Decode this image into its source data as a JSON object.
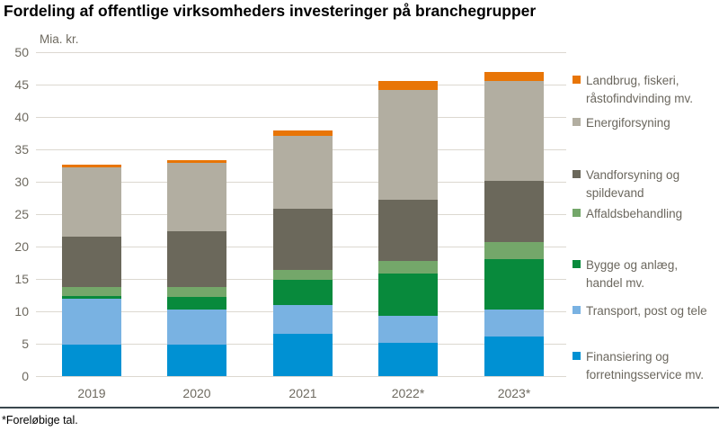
{
  "header": {
    "title": "Fordeling af offentlige virksomheders investeringer på branchegrupper"
  },
  "chart": {
    "unit_label": "Mia. kr.",
    "footnote": "*Foreløbige tal."
  },
  "chart_data": {
    "type": "bar",
    "stacked": true,
    "title": "Fordeling af offentlige virksomheders investeringer på branchegrupper",
    "ylabel": "Mia. kr.",
    "xlabel": "",
    "ylim": [
      0,
      50
    ],
    "ytick_step": 5,
    "grid": true,
    "legend_position": "right",
    "categories": [
      "2019",
      "2020",
      "2021",
      "2022*",
      "2023*"
    ],
    "series": [
      {
        "name": "Finansiering og forretningsservice mv.",
        "legend_lines": [
          "Finansiering og",
          "forretningsservice mv."
        ],
        "color": "#0091d3",
        "values": [
          4.9,
          4.9,
          6.5,
          5.2,
          6.1
        ]
      },
      {
        "name": "Transport, post og tele",
        "legend_lines": [
          "Transport, post og tele"
        ],
        "color": "#79b2e2",
        "values": [
          7.1,
          5.4,
          4.5,
          4.1,
          4.2
        ]
      },
      {
        "name": "Bygge og anlæg, handel mv.",
        "legend_lines": [
          "Bygge og anlæg,",
          "handel mv."
        ],
        "color": "#088a3c",
        "values": [
          0.4,
          1.9,
          3.8,
          6.5,
          7.7
        ]
      },
      {
        "name": "Affaldsbehandling",
        "legend_lines": [
          "Affaldsbehandling"
        ],
        "color": "#74a76a",
        "values": [
          1.4,
          1.6,
          1.6,
          2.0,
          2.7
        ]
      },
      {
        "name": "Vandforsyning og spildevand",
        "legend_lines": [
          "Vandforsyning og",
          "spildevand"
        ],
        "color": "#6b685b",
        "values": [
          7.7,
          8.5,
          9.4,
          9.4,
          9.5
        ]
      },
      {
        "name": "Energiforsyning",
        "legend_lines": [
          "Energiforsyning"
        ],
        "color": "#b2aea1",
        "values": [
          10.7,
          10.6,
          11.3,
          16.9,
          15.4
        ]
      },
      {
        "name": "Landbrug, fiskeri, råstofindvinding mv.",
        "legend_lines": [
          "Landbrug, fiskeri,",
          "råstofindvinding mv."
        ],
        "color": "#e87506",
        "values": [
          0.5,
          0.5,
          0.8,
          1.4,
          1.4
        ]
      }
    ]
  }
}
